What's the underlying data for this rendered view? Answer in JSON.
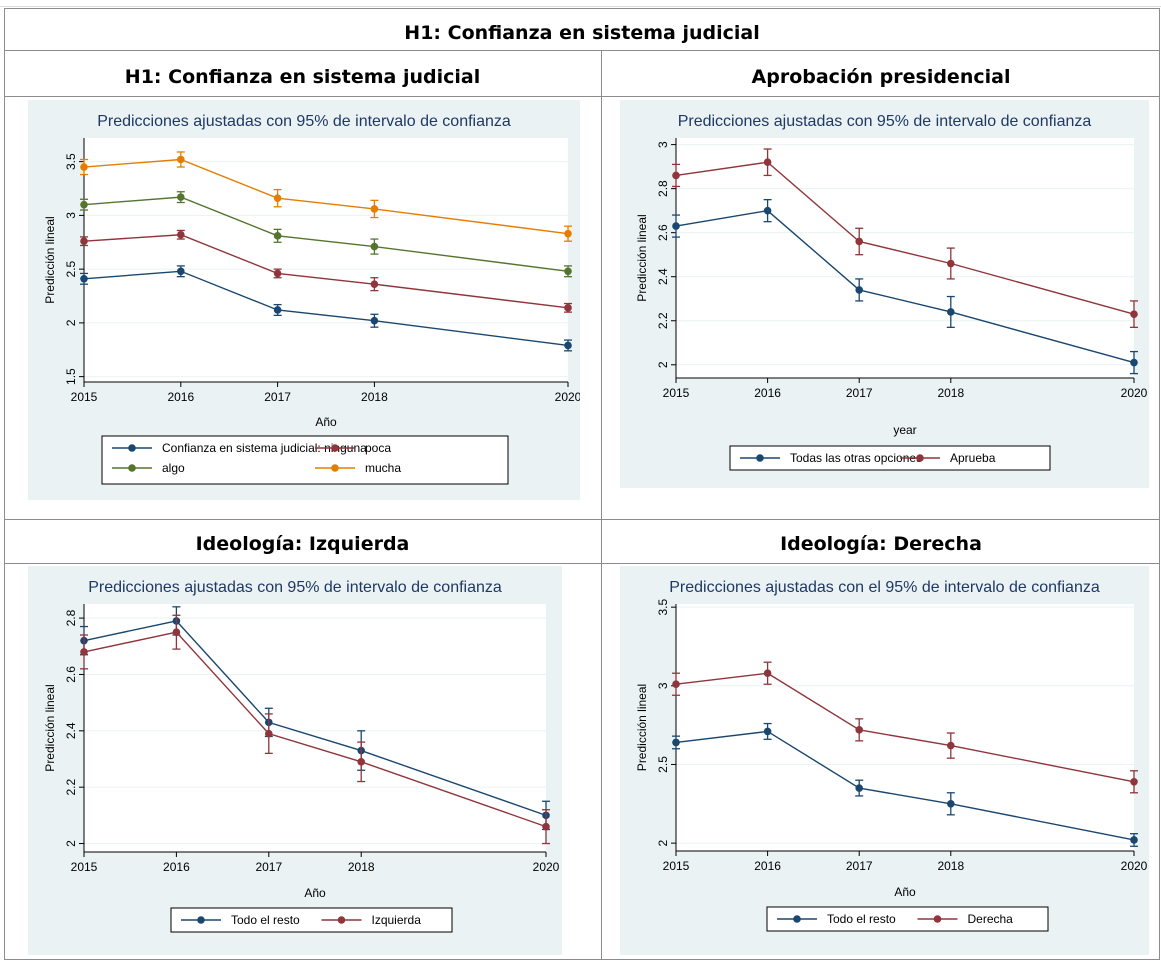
{
  "page": {
    "main_title": "H1: Confianza en sistema judicial",
    "headers": [
      "H1: Confianza en sistema judicial",
      "Aprobación presidencial",
      "Ideología: Izquierda",
      "Ideología: Derecha"
    ]
  },
  "chart_data": [
    {
      "type": "line",
      "title": "Predicciones ajustadas con 95% de intervalo de confianza",
      "xlabel": "Año",
      "ylabel": "Predicción lineal",
      "x": [
        2015,
        2016,
        2017,
        2018,
        2020
      ],
      "xticks": [
        "2015",
        "2016",
        "2017",
        "2018",
        "2020"
      ],
      "ylim": [
        1.45,
        3.72
      ],
      "yticks": [
        1.5,
        2,
        2.5,
        3,
        3.5
      ],
      "ytick_labels": [
        "1.5",
        "2",
        "2.5",
        "3",
        "3.5"
      ],
      "grid": true,
      "legend_cols": 2,
      "series": [
        {
          "name": "Confianza en sistema judicial: ninguna",
          "color": "#1a476f",
          "values": [
            2.41,
            2.48,
            2.12,
            2.02,
            1.79
          ],
          "ci": [
            0.05,
            0.05,
            0.05,
            0.06,
            0.05
          ]
        },
        {
          "name": "poca",
          "color": "#90353b",
          "values": [
            2.76,
            2.82,
            2.46,
            2.36,
            2.14
          ],
          "ci": [
            0.04,
            0.04,
            0.04,
            0.06,
            0.04
          ]
        },
        {
          "name": "algo",
          "color": "#55752f",
          "values": [
            3.1,
            3.17,
            2.81,
            2.71,
            2.48
          ],
          "ci": [
            0.05,
            0.05,
            0.06,
            0.07,
            0.05
          ]
        },
        {
          "name": "mucha",
          "color": "#e37e00",
          "values": [
            3.45,
            3.52,
            3.16,
            3.06,
            2.83
          ],
          "ci": [
            0.07,
            0.07,
            0.08,
            0.08,
            0.07
          ]
        }
      ]
    },
    {
      "type": "line",
      "title": "Predicciones ajustadas con 95% de intervalo de confianza",
      "xlabel": "year",
      "ylabel": "Predicción lineal",
      "x": [
        2015,
        2016,
        2017,
        2018,
        2020
      ],
      "xticks": [
        "2015",
        "2016",
        "2017",
        "2018",
        "2020"
      ],
      "ylim": [
        1.94,
        3.03
      ],
      "yticks": [
        2,
        2.2,
        2.4,
        2.6,
        2.8,
        3
      ],
      "ytick_labels": [
        "2",
        "2.2",
        "2.4",
        "2.6",
        "2.8",
        "3"
      ],
      "grid": true,
      "legend_cols": 2,
      "series": [
        {
          "name": "Todas las otras opciones",
          "color": "#1a476f",
          "values": [
            2.63,
            2.7,
            2.34,
            2.24,
            2.01
          ],
          "ci": [
            0.05,
            0.05,
            0.05,
            0.07,
            0.05
          ]
        },
        {
          "name": "Aprueba",
          "color": "#90353b",
          "values": [
            2.86,
            2.92,
            2.56,
            2.46,
            2.23
          ],
          "ci": [
            0.05,
            0.06,
            0.06,
            0.07,
            0.06
          ]
        }
      ]
    },
    {
      "type": "line",
      "title": "Predicciones ajustadas con 95% de intervalo de confianza",
      "xlabel": "Año",
      "ylabel": "Predicción lineal",
      "x": [
        2015,
        2016,
        2017,
        2018,
        2020
      ],
      "xticks": [
        "2015",
        "2016",
        "2017",
        "2018",
        "2020"
      ],
      "ylim": [
        1.97,
        2.85
      ],
      "yticks": [
        2,
        2.2,
        2.4,
        2.6,
        2.8
      ],
      "ytick_labels": [
        "2",
        "2.2",
        "2.4",
        "2.6",
        "2.8"
      ],
      "grid": true,
      "legend_cols": 2,
      "series": [
        {
          "name": "Todo el resto",
          "color": "#1a476f",
          "values": [
            2.72,
            2.79,
            2.43,
            2.33,
            2.1
          ],
          "ci": [
            0.05,
            0.05,
            0.05,
            0.07,
            0.05
          ]
        },
        {
          "name": "Izquierda",
          "color": "#90353b",
          "values": [
            2.68,
            2.75,
            2.39,
            2.29,
            2.06
          ],
          "ci": [
            0.06,
            0.06,
            0.07,
            0.07,
            0.06
          ]
        }
      ]
    },
    {
      "type": "line",
      "title": "Predicciones ajustadas con el 95% de intervalo de confianza",
      "xlabel": "Año",
      "ylabel": "Predicción lineal",
      "x": [
        2015,
        2016,
        2017,
        2018,
        2020
      ],
      "xticks": [
        "2015",
        "2016",
        "2017",
        "2018",
        "2020"
      ],
      "ylim": [
        1.95,
        3.52
      ],
      "yticks": [
        2,
        2.5,
        3,
        3.5
      ],
      "ytick_labels": [
        "2",
        "2.5",
        "3",
        "3.5"
      ],
      "grid": true,
      "legend_cols": 2,
      "series": [
        {
          "name": "Todo el resto",
          "color": "#1a476f",
          "values": [
            2.64,
            2.71,
            2.35,
            2.25,
            2.02
          ],
          "ci": [
            0.04,
            0.05,
            0.05,
            0.07,
            0.04
          ]
        },
        {
          "name": "Derecha",
          "color": "#90353b",
          "values": [
            3.01,
            3.08,
            2.72,
            2.62,
            2.39
          ],
          "ci": [
            0.07,
            0.07,
            0.07,
            0.08,
            0.07
          ]
        }
      ]
    }
  ]
}
